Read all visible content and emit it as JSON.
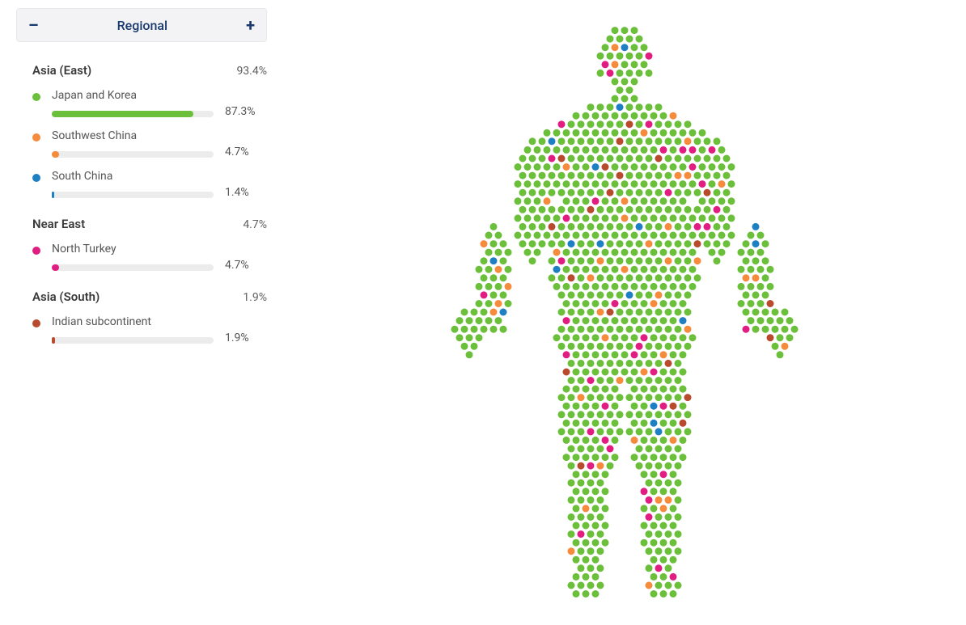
{
  "panel": {
    "title": "Regional",
    "collapse_glyph": "–",
    "expand_glyph": "+"
  },
  "bar_track_color": "#ececec",
  "background_color": "#ffffff",
  "groups": [
    {
      "name": "Asia (East)",
      "percent_label": "93.4%",
      "items": [
        {
          "label": "Japan and Korea",
          "percent_label": "87.3%",
          "percent": 87.3,
          "color": "#6bbf3b"
        },
        {
          "label": "Southwest China",
          "percent_label": "4.7%",
          "percent": 4.7,
          "color": "#f58b3c"
        },
        {
          "label": "South China",
          "percent_label": "1.4%",
          "percent": 1.4,
          "color": "#1e7fc2"
        }
      ]
    },
    {
      "name": "Near East",
      "percent_label": "4.7%",
      "items": [
        {
          "label": "North Turkey",
          "percent_label": "4.7%",
          "percent": 4.7,
          "color": "#e01e82"
        }
      ]
    },
    {
      "name": "Asia (South)",
      "percent_label": "1.9%",
      "items": [
        {
          "label": "Indian subcontinent",
          "percent_label": "1.9%",
          "percent": 1.9,
          "color": "#b84a2e"
        }
      ]
    }
  ],
  "body_diagram": {
    "type": "dot-fill-silhouette",
    "dot_radius": 4.5,
    "dot_spacing": 12,
    "svg_viewbox": "0 0 560 740",
    "colors": [
      {
        "name": "Japan and Korea",
        "hex": "#6bbf3b",
        "share": 0.873
      },
      {
        "name": "Southwest China",
        "hex": "#f58b3c",
        "share": 0.047
      },
      {
        "name": "North Turkey",
        "hex": "#e01e82",
        "share": 0.047
      },
      {
        "name": "Indian subcontinent",
        "hex": "#b84a2e",
        "share": 0.019
      },
      {
        "name": "South China",
        "hex": "#1e7fc2",
        "share": 0.014
      }
    ]
  }
}
